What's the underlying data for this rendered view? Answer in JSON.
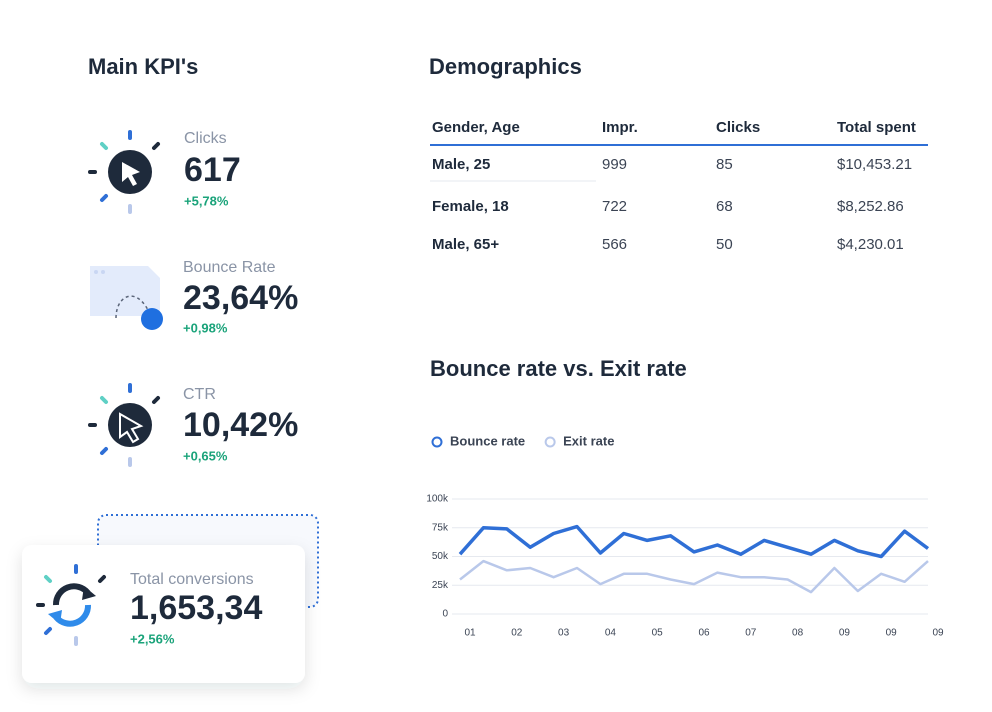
{
  "kpis": {
    "title": "Main KPI's",
    "items": [
      {
        "label": "Clicks",
        "value": "617",
        "change": "+5,78%"
      },
      {
        "label": "Bounce Rate",
        "value": "23,64%",
        "change": "+0,98%"
      },
      {
        "label": "CTR",
        "value": "10,42%",
        "change": "+0,65%"
      },
      {
        "label": "Total conversions",
        "value": "1,653,34",
        "change": "+2,56%"
      }
    ]
  },
  "demographics": {
    "title": "Demographics",
    "header": [
      "Gender, Age",
      "Impr.",
      "Clicks",
      "Total spent"
    ],
    "rows": [
      [
        "Male, 25",
        "999",
        "85",
        "$10,453.21"
      ],
      [
        "Female, 18",
        "722",
        "68",
        "$8,252.86"
      ],
      [
        "Male, 65+",
        "566",
        "50",
        "$4,230.01"
      ]
    ]
  },
  "chart_data": {
    "type": "line",
    "title": "Bounce rate vs. Exit rate",
    "categories": [
      "01",
      null,
      "02",
      null,
      "03",
      null,
      "04",
      null,
      "05",
      null,
      "06",
      null,
      "07",
      null,
      "08",
      null,
      "09",
      null,
      "09",
      null,
      "09"
    ],
    "series": [
      {
        "name": "Bounce rate",
        "color": "#2f6fd6",
        "values": [
          52,
          75,
          74,
          58,
          70,
          76,
          53,
          70,
          64,
          68,
          54,
          60,
          52,
          64,
          58,
          52,
          64,
          55,
          50,
          72,
          57
        ]
      },
      {
        "name": "Exit rate",
        "color": "#b9c8ea",
        "values": [
          30,
          46,
          38,
          40,
          32,
          40,
          26,
          35,
          35,
          30,
          26,
          36,
          32,
          32,
          30,
          19,
          40,
          20,
          35,
          28,
          46
        ]
      }
    ],
    "ylim": [
      0,
      100
    ],
    "yticks": [
      0,
      {
        "value": 25,
        "label": "25k"
      },
      {
        "value": 50,
        "label": "50k"
      },
      {
        "value": 75,
        "label": "75k"
      },
      {
        "value": 100,
        "label": "100k"
      }
    ],
    "grid": true,
    "legend": "top-left"
  }
}
